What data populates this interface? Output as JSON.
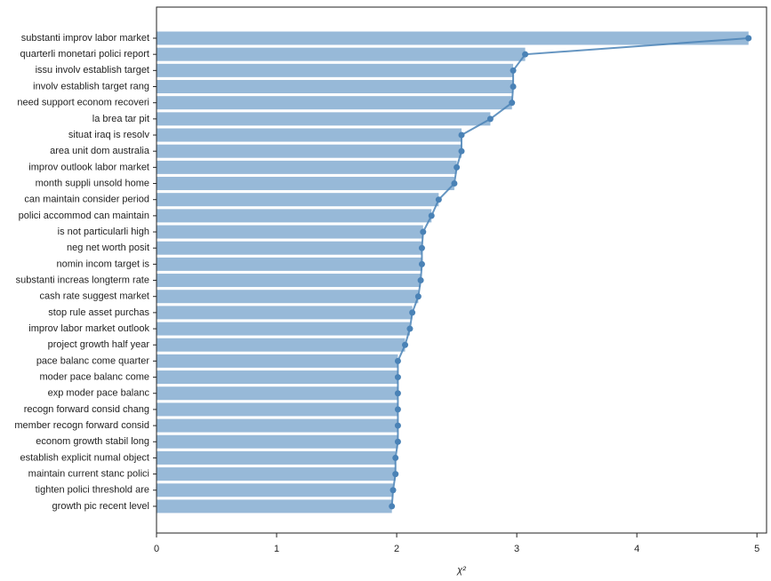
{
  "chart_data": {
    "type": "bar",
    "orientation": "horizontal",
    "categories": [
      "substanti improv labor market",
      "quarterli monetari polici report",
      "issu involv establish target",
      "involv establish target rang",
      "need support econom recoveri",
      "la brea tar pit",
      "situat iraq is resolv",
      "area unit dom australia",
      "improv outlook labor market",
      "month suppli unsold home",
      "can maintain consider period",
      "polici accommod can maintain",
      "is not particularli high",
      "neg net worth posit",
      "nomin incom target is",
      "substanti increas longterm rate",
      "cash rate suggest market",
      "stop rule asset purchas",
      "improv labor market outlook",
      "project growth half year",
      "pace balanc come quarter",
      "moder pace balanc come",
      "exp moder pace balanc",
      "recogn forward consid chang",
      "member recogn forward consid",
      "econom growth stabil long",
      "establish explicit numal object",
      "maintain current stanc polici",
      "tighten polici threshold are",
      "growth pic recent level"
    ],
    "values": [
      4.93,
      3.07,
      2.97,
      2.97,
      2.96,
      2.78,
      2.54,
      2.54,
      2.5,
      2.48,
      2.35,
      2.29,
      2.22,
      2.21,
      2.21,
      2.2,
      2.18,
      2.13,
      2.11,
      2.07,
      2.01,
      2.01,
      2.01,
      2.01,
      2.01,
      2.01,
      1.99,
      1.99,
      1.97,
      1.96
    ],
    "color": "#97b9d8",
    "line": true,
    "line_color": "#4a82b6",
    "xlabel": "χ²",
    "xlim": [
      0,
      5.08
    ],
    "xticks": [
      0,
      1,
      2,
      3,
      4,
      5
    ]
  }
}
